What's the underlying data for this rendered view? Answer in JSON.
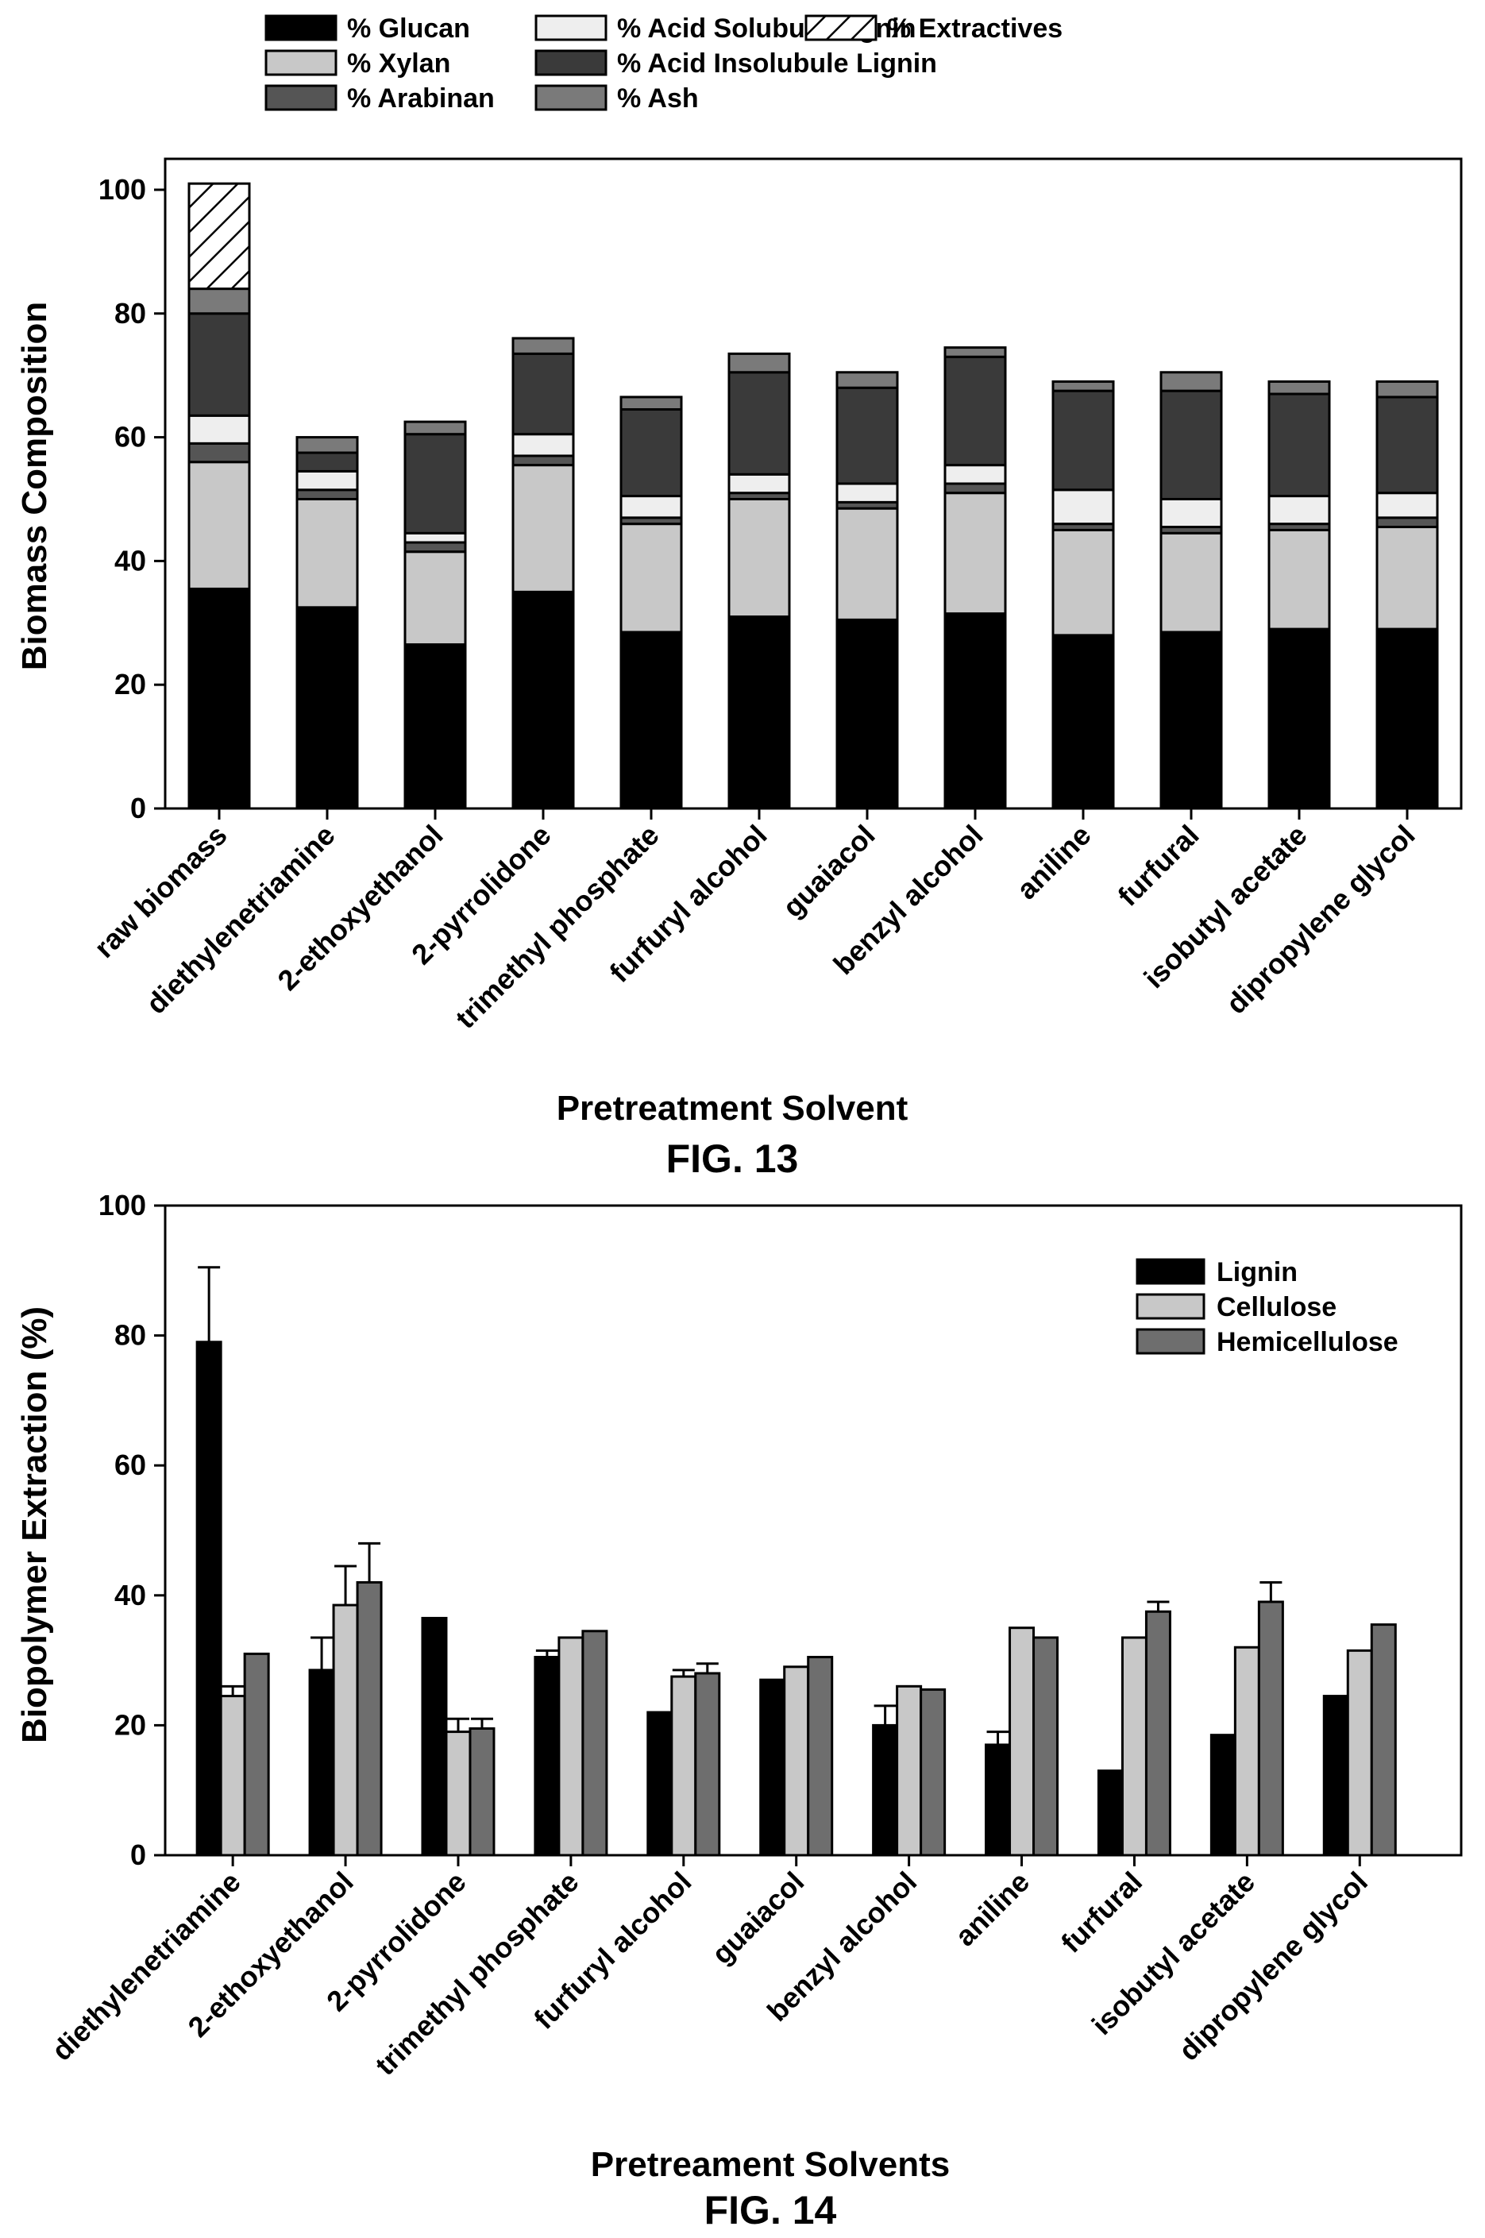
{
  "fig13": {
    "caption": "FIG. 13",
    "chart_data": {
      "type": "bar",
      "stacked": true,
      "ylabel": "Biomass Composition",
      "xlabel": "Pretreatment Solvent",
      "ylim": [
        0,
        105
      ],
      "yticks": [
        "0",
        "20",
        "40",
        "60",
        "80",
        "100"
      ],
      "grid": false,
      "legend_position": "top",
      "categories": [
        "raw biomass",
        "diethylenetriamine",
        "2-ethoxyethanol",
        "2-pyrrolidone",
        "trimethyl phosphate",
        "furfuryl alcohol",
        "guaiacol",
        "benzyl alcohol",
        "aniline",
        "furfural",
        "isobutyl acetate",
        "dipropylene glycol"
      ],
      "series": [
        {
          "name": "% Glucan",
          "color": "#000000",
          "values": [
            35.5,
            32.5,
            26.5,
            35,
            28.5,
            31,
            30.5,
            31.5,
            28,
            28.5,
            29,
            29
          ]
        },
        {
          "name": "% Xylan",
          "color": "#c8c8c8",
          "values": [
            20.5,
            17.5,
            15,
            20.5,
            17.5,
            19,
            18,
            19.5,
            17,
            16,
            16,
            16.5
          ]
        },
        {
          "name": "% Arabinan",
          "color": "#555555",
          "values": [
            3,
            1.5,
            1.5,
            1.5,
            1,
            1,
            1,
            1.5,
            1,
            1,
            1,
            1.5
          ]
        },
        {
          "name": "% Acid Solubule Lignin",
          "color": "#eeeeee",
          "values": [
            4.5,
            3,
            1.5,
            3.5,
            3.5,
            3,
            3,
            3,
            5.5,
            4.5,
            4.5,
            4
          ]
        },
        {
          "name": "% Acid Insolubule Lignin",
          "color": "#3a3a3a",
          "values": [
            16.5,
            3,
            16,
            13,
            14,
            16.5,
            15.5,
            17.5,
            16,
            17.5,
            16.5,
            15.5
          ]
        },
        {
          "name": "% Ash",
          "color": "#7a7a7a",
          "values": [
            4,
            2.5,
            2,
            2.5,
            2,
            3,
            2.5,
            1.5,
            1.5,
            3,
            2,
            2.5
          ]
        },
        {
          "name": "% Extractives",
          "color": "#ffffff",
          "hatch": true,
          "values": [
            17,
            0,
            0,
            0,
            0,
            0,
            0,
            0,
            0,
            0,
            0,
            0
          ]
        }
      ]
    }
  },
  "fig14": {
    "caption": "FIG. 14",
    "chart_data": {
      "type": "bar",
      "stacked": false,
      "ylabel": "Biopolymer Extraction (%)",
      "xlabel": "Pretreament Solvents",
      "ylim": [
        0,
        100
      ],
      "yticks": [
        "0",
        "20",
        "40",
        "60",
        "80",
        "100"
      ],
      "grid": false,
      "legend_position": "top-right",
      "categories": [
        "diethylenetriamine",
        "2-ethoxyethanol",
        "2-pyrrolidone",
        "trimethyl phosphate",
        "furfuryl alcohol",
        "guaiacol",
        "benzyl alcohol",
        "aniline",
        "furfural",
        "isobutyl acetate",
        "dipropylene glycol"
      ],
      "series": [
        {
          "name": "Lignin",
          "color": "#000000",
          "values": [
            79,
            28.5,
            36.5,
            30.5,
            22,
            27,
            20,
            17,
            13,
            18.5,
            24.5
          ],
          "errors": [
            11.5,
            5,
            0,
            1,
            0,
            0,
            3,
            2,
            0,
            0,
            0
          ]
        },
        {
          "name": "Cellulose",
          "color": "#c8c8c8",
          "values": [
            24.5,
            38.5,
            19,
            33.5,
            27.5,
            29,
            26,
            35,
            33.5,
            32,
            31.5
          ],
          "errors": [
            1.5,
            6,
            2,
            0,
            1,
            0,
            0,
            0,
            0,
            0,
            0
          ]
        },
        {
          "name": "Hemicellulose",
          "color": "#6e6e6e",
          "values": [
            31,
            42,
            19.5,
            34.5,
            28,
            30.5,
            25.5,
            33.5,
            37.5,
            39,
            35.5
          ],
          "errors": [
            0,
            6,
            1.5,
            0,
            1.5,
            0,
            0,
            0,
            1.5,
            3,
            0
          ]
        }
      ]
    }
  }
}
